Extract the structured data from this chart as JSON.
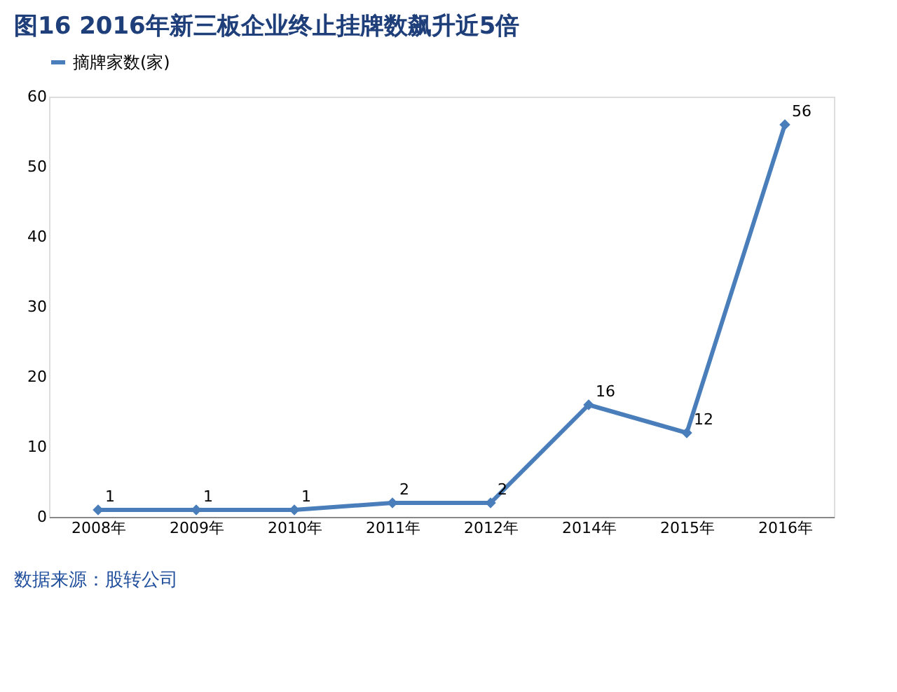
{
  "chart_data": {
    "type": "line",
    "title": "图16 2016年新三板企业终止挂牌数飙升近5倍",
    "categories": [
      "2008年",
      "2009年",
      "2010年",
      "2011年",
      "2012年",
      "2014年",
      "2015年",
      "2016年"
    ],
    "series": [
      {
        "name": "摘牌家数(家)",
        "color": "#4a7ebb",
        "values": [
          1,
          1,
          1,
          2,
          2,
          16,
          12,
          56
        ]
      }
    ],
    "ylim": [
      0,
      60
    ],
    "yticks": [
      0,
      10,
      20,
      30,
      40,
      50,
      60
    ],
    "grid": false,
    "legend": "top",
    "marker": "diamond",
    "line_style": "solid",
    "data_labels": true,
    "annotations": [
      "数据来源：股转公司"
    ]
  }
}
